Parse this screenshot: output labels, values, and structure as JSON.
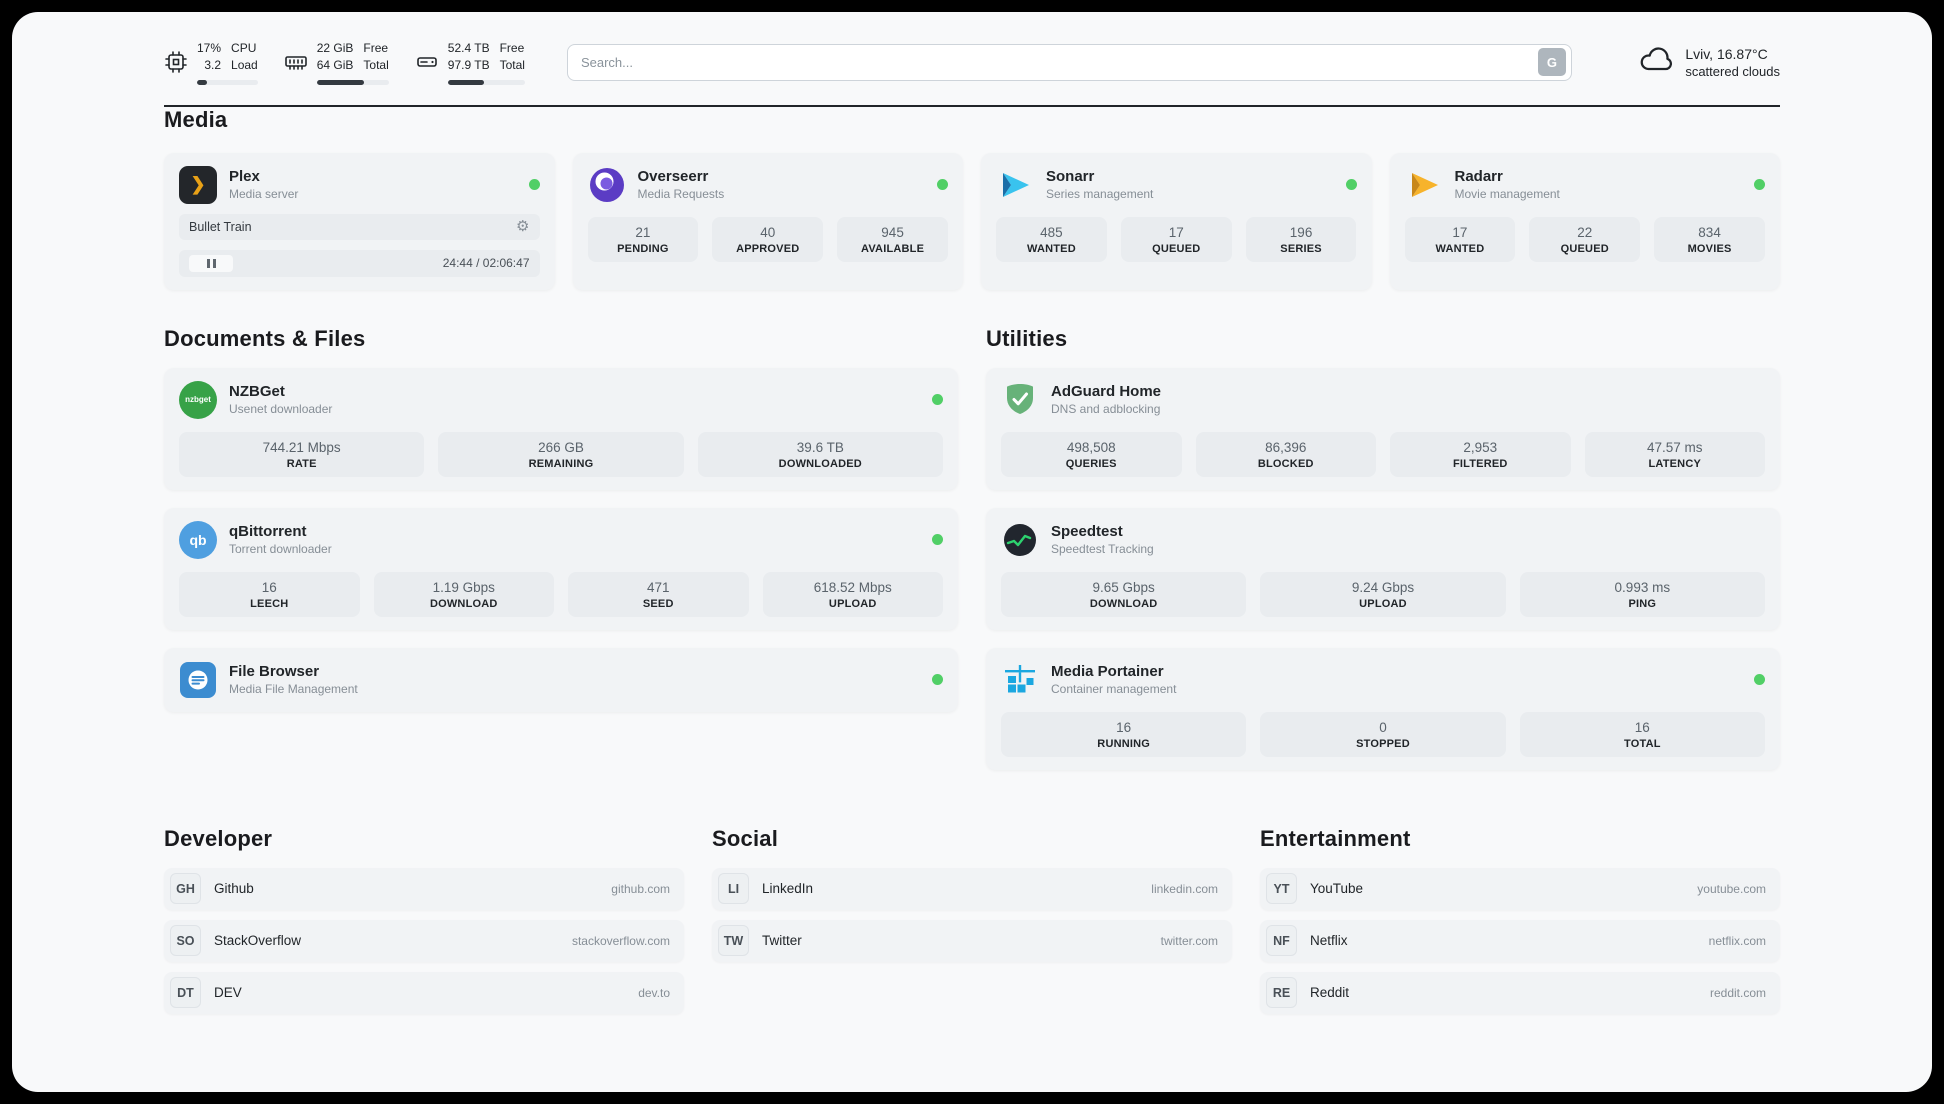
{
  "header": {
    "cpu": {
      "value_line1": "17%",
      "value_line2": "3.2",
      "label_line1": "CPU",
      "label_line2": "Load",
      "progress_pct": 17
    },
    "ram": {
      "value_line1": "22 GiB",
      "value_line2": "64 GiB",
      "label_line1": "Free",
      "label_line2": "Total",
      "progress_pct": 66
    },
    "disk": {
      "value_line1": "52.4 TB",
      "value_line2": "97.9 TB",
      "label_line1": "Free",
      "label_line2": "Total",
      "progress_pct": 47
    },
    "search": {
      "placeholder": "Search...",
      "engine_button": "G"
    },
    "weather": {
      "location": "Lviv, 16.87°C",
      "condition": "scattered clouds"
    }
  },
  "section_titles": {
    "media": "Media",
    "documents": "Documents & Files",
    "utilities": "Utilities",
    "developer": "Developer",
    "social": "Social",
    "entertainment": "Entertainment"
  },
  "media": {
    "plex": {
      "name": "Plex",
      "subtitle": "Media server",
      "now_playing": "Bullet Train",
      "elapsed_total": "24:44 / 02:06:47"
    },
    "overseerr": {
      "name": "Overseerr",
      "subtitle": "Media Requests",
      "stats": [
        {
          "value": "21",
          "label": "PENDING"
        },
        {
          "value": "40",
          "label": "APPROVED"
        },
        {
          "value": "945",
          "label": "AVAILABLE"
        }
      ]
    },
    "sonarr": {
      "name": "Sonarr",
      "subtitle": "Series management",
      "stats": [
        {
          "value": "485",
          "label": "WANTED"
        },
        {
          "value": "17",
          "label": "QUEUED"
        },
        {
          "value": "196",
          "label": "SERIES"
        }
      ]
    },
    "radarr": {
      "name": "Radarr",
      "subtitle": "Movie management",
      "stats": [
        {
          "value": "17",
          "label": "WANTED"
        },
        {
          "value": "22",
          "label": "QUEUED"
        },
        {
          "value": "834",
          "label": "MOVIES"
        }
      ]
    }
  },
  "documents": {
    "nzbget": {
      "name": "NZBGet",
      "subtitle": "Usenet downloader",
      "icon_text": "nzbget",
      "stats": [
        {
          "value": "744.21 Mbps",
          "label": "RATE"
        },
        {
          "value": "266 GB",
          "label": "REMAINING"
        },
        {
          "value": "39.6 TB",
          "label": "DOWNLOADED"
        }
      ]
    },
    "qbittorrent": {
      "name": "qBittorrent",
      "subtitle": "Torrent downloader",
      "icon_text": "qb",
      "stats": [
        {
          "value": "16",
          "label": "LEECH"
        },
        {
          "value": "1.19 Gbps",
          "label": "DOWNLOAD"
        },
        {
          "value": "471",
          "label": "SEED"
        },
        {
          "value": "618.52 Mbps",
          "label": "UPLOAD"
        }
      ]
    },
    "filebrowser": {
      "name": "File Browser",
      "subtitle": "Media File Management"
    }
  },
  "utilities": {
    "adguard": {
      "name": "AdGuard Home",
      "subtitle": "DNS and adblocking",
      "stats": [
        {
          "value": "498,508",
          "label": "QUERIES"
        },
        {
          "value": "86,396",
          "label": "BLOCKED"
        },
        {
          "value": "2,953",
          "label": "FILTERED"
        },
        {
          "value": "47.57 ms",
          "label": "LATENCY"
        }
      ]
    },
    "speedtest": {
      "name": "Speedtest",
      "subtitle": "Speedtest Tracking",
      "stats": [
        {
          "value": "9.65 Gbps",
          "label": "DOWNLOAD"
        },
        {
          "value": "9.24 Gbps",
          "label": "UPLOAD"
        },
        {
          "value": "0.993 ms",
          "label": "PING"
        }
      ]
    },
    "portainer": {
      "name": "Media Portainer",
      "subtitle": "Container management",
      "stats": [
        {
          "value": "16",
          "label": "RUNNING"
        },
        {
          "value": "0",
          "label": "STOPPED"
        },
        {
          "value": "16",
          "label": "TOTAL"
        }
      ]
    }
  },
  "bookmarks": {
    "developer": [
      {
        "abbr": "GH",
        "label": "Github",
        "url": "github.com"
      },
      {
        "abbr": "SO",
        "label": "StackOverflow",
        "url": "stackoverflow.com"
      },
      {
        "abbr": "DT",
        "label": "DEV",
        "url": "dev.to"
      }
    ],
    "social": [
      {
        "abbr": "LI",
        "label": "LinkedIn",
        "url": "linkedin.com"
      },
      {
        "abbr": "TW",
        "label": "Twitter",
        "url": "twitter.com"
      }
    ],
    "entertainment": [
      {
        "abbr": "YT",
        "label": "YouTube",
        "url": "youtube.com"
      },
      {
        "abbr": "NF",
        "label": "Netflix",
        "url": "netflix.com"
      },
      {
        "abbr": "RE",
        "label": "Reddit",
        "url": "reddit.com"
      }
    ]
  },
  "icons": {
    "settings_glyph": "⚙",
    "plex_glyph": "❯"
  },
  "colors": {
    "page_bg": "#f8f9fa",
    "card_bg": "#f1f3f5",
    "stat_bg": "#e9ecef",
    "status_green": "#51cf66",
    "progress_fill": "#343a40",
    "plex_gold": "#e8a117",
    "overseerr_purple": "#5b3cc4",
    "sonarr_blue": "#39c3ee",
    "radarr_gold": "#f7b32b",
    "nzbget_green": "#37a247",
    "qbittorrent_blue": "#4f9fe0",
    "filebrowser_blue": "#3c8cd0",
    "adguard_green": "#67b279",
    "speedtest_dark": "#21262e",
    "speedtest_green": "#2dd36f",
    "portainer_blue": "#1ba7e0"
  }
}
